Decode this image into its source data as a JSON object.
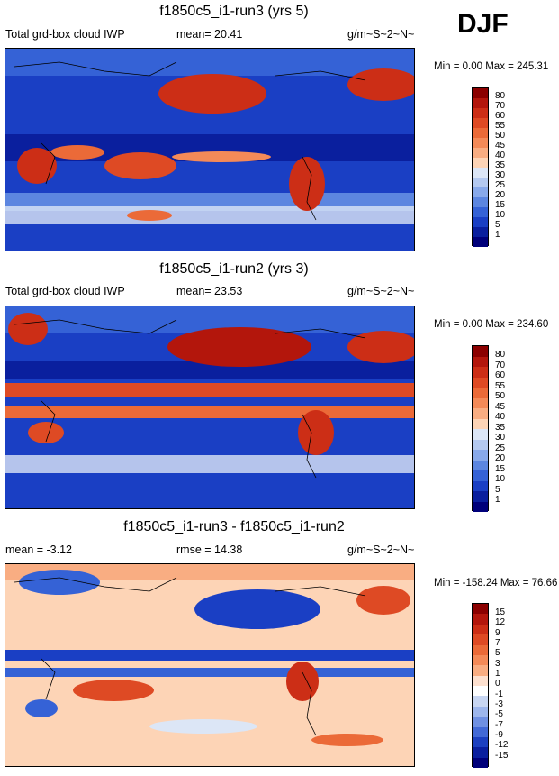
{
  "season": "DJF",
  "units": "g/m~S~2~N~",
  "panels": [
    {
      "title": "f1850c5_i1-run3 (yrs 5)",
      "left_label": "Total grd-box cloud IWP",
      "center_label": "mean=  20.41",
      "right_label": "g/m~S~2~N~",
      "minmax": "Min =   0.00 Max = 245.31"
    },
    {
      "title": "f1850c5_i1-run2 (yrs 3)",
      "left_label": "Total grd-box cloud IWP",
      "center_label": "mean=  23.53",
      "right_label": "g/m~S~2~N~",
      "minmax": "Min =   0.00 Max = 234.60"
    },
    {
      "title": "f1850c5_i1-run3 - f1850c5_i1-run2",
      "left_label": "mean =  -3.12",
      "center_label": "rmse =  14.38",
      "right_label": "g/m~S~2~N~",
      "minmax": "Min = -158.24 Max =  76.66"
    }
  ],
  "chart_data": [
    {
      "type": "heatmap",
      "title": "f1850c5_i1-run3 (yrs 5)",
      "variable": "Total grd-box cloud IWP",
      "mean": 20.41,
      "min": 0.0,
      "max": 245.31,
      "colorbar_levels": [
        "80",
        "70",
        "60",
        "55",
        "50",
        "45",
        "40",
        "35",
        "30",
        "25",
        "20",
        "15",
        "10",
        "5",
        "1"
      ],
      "colorbar_colors": [
        "#8b0000",
        "#b3160c",
        "#cc2e16",
        "#de4a24",
        "#eb6a38",
        "#f48a58",
        "#f9ad82",
        "#fdd4b6",
        "#dce6f6",
        "#b4c9f0",
        "#88a9ea",
        "#5c86e0",
        "#3562d6",
        "#1a3fc4",
        "#0a1f9e",
        "#00007a"
      ]
    },
    {
      "type": "heatmap",
      "title": "f1850c5_i1-run2 (yrs 3)",
      "variable": "Total grd-box cloud IWP",
      "mean": 23.53,
      "min": 0.0,
      "max": 234.6,
      "colorbar_levels": [
        "80",
        "70",
        "60",
        "55",
        "50",
        "45",
        "40",
        "35",
        "30",
        "25",
        "20",
        "15",
        "10",
        "5",
        "1"
      ],
      "colorbar_colors": [
        "#8b0000",
        "#b3160c",
        "#cc2e16",
        "#de4a24",
        "#eb6a38",
        "#f48a58",
        "#f9ad82",
        "#fdd4b6",
        "#dce6f6",
        "#b4c9f0",
        "#88a9ea",
        "#5c86e0",
        "#3562d6",
        "#1a3fc4",
        "#0a1f9e",
        "#00007a"
      ]
    },
    {
      "type": "heatmap",
      "title": "f1850c5_i1-run3 - f1850c5_i1-run2",
      "mean": -3.12,
      "rmse": 14.38,
      "min": -158.24,
      "max": 76.66,
      "colorbar_levels": [
        "15",
        "12",
        "9",
        "7",
        "5",
        "3",
        "1",
        "0",
        "-1",
        "-3",
        "-5",
        "-7",
        "-9",
        "-12",
        "-15"
      ],
      "colorbar_colors": [
        "#8b0000",
        "#b3160c",
        "#cc2e16",
        "#de4a24",
        "#eb6a38",
        "#f48a58",
        "#f9ad82",
        "#fde0cf",
        "#ffffff",
        "#c8d6f2",
        "#9db6ec",
        "#6f90e2",
        "#4269d6",
        "#1c40c0",
        "#0a1f9e",
        "#00007a"
      ]
    }
  ]
}
